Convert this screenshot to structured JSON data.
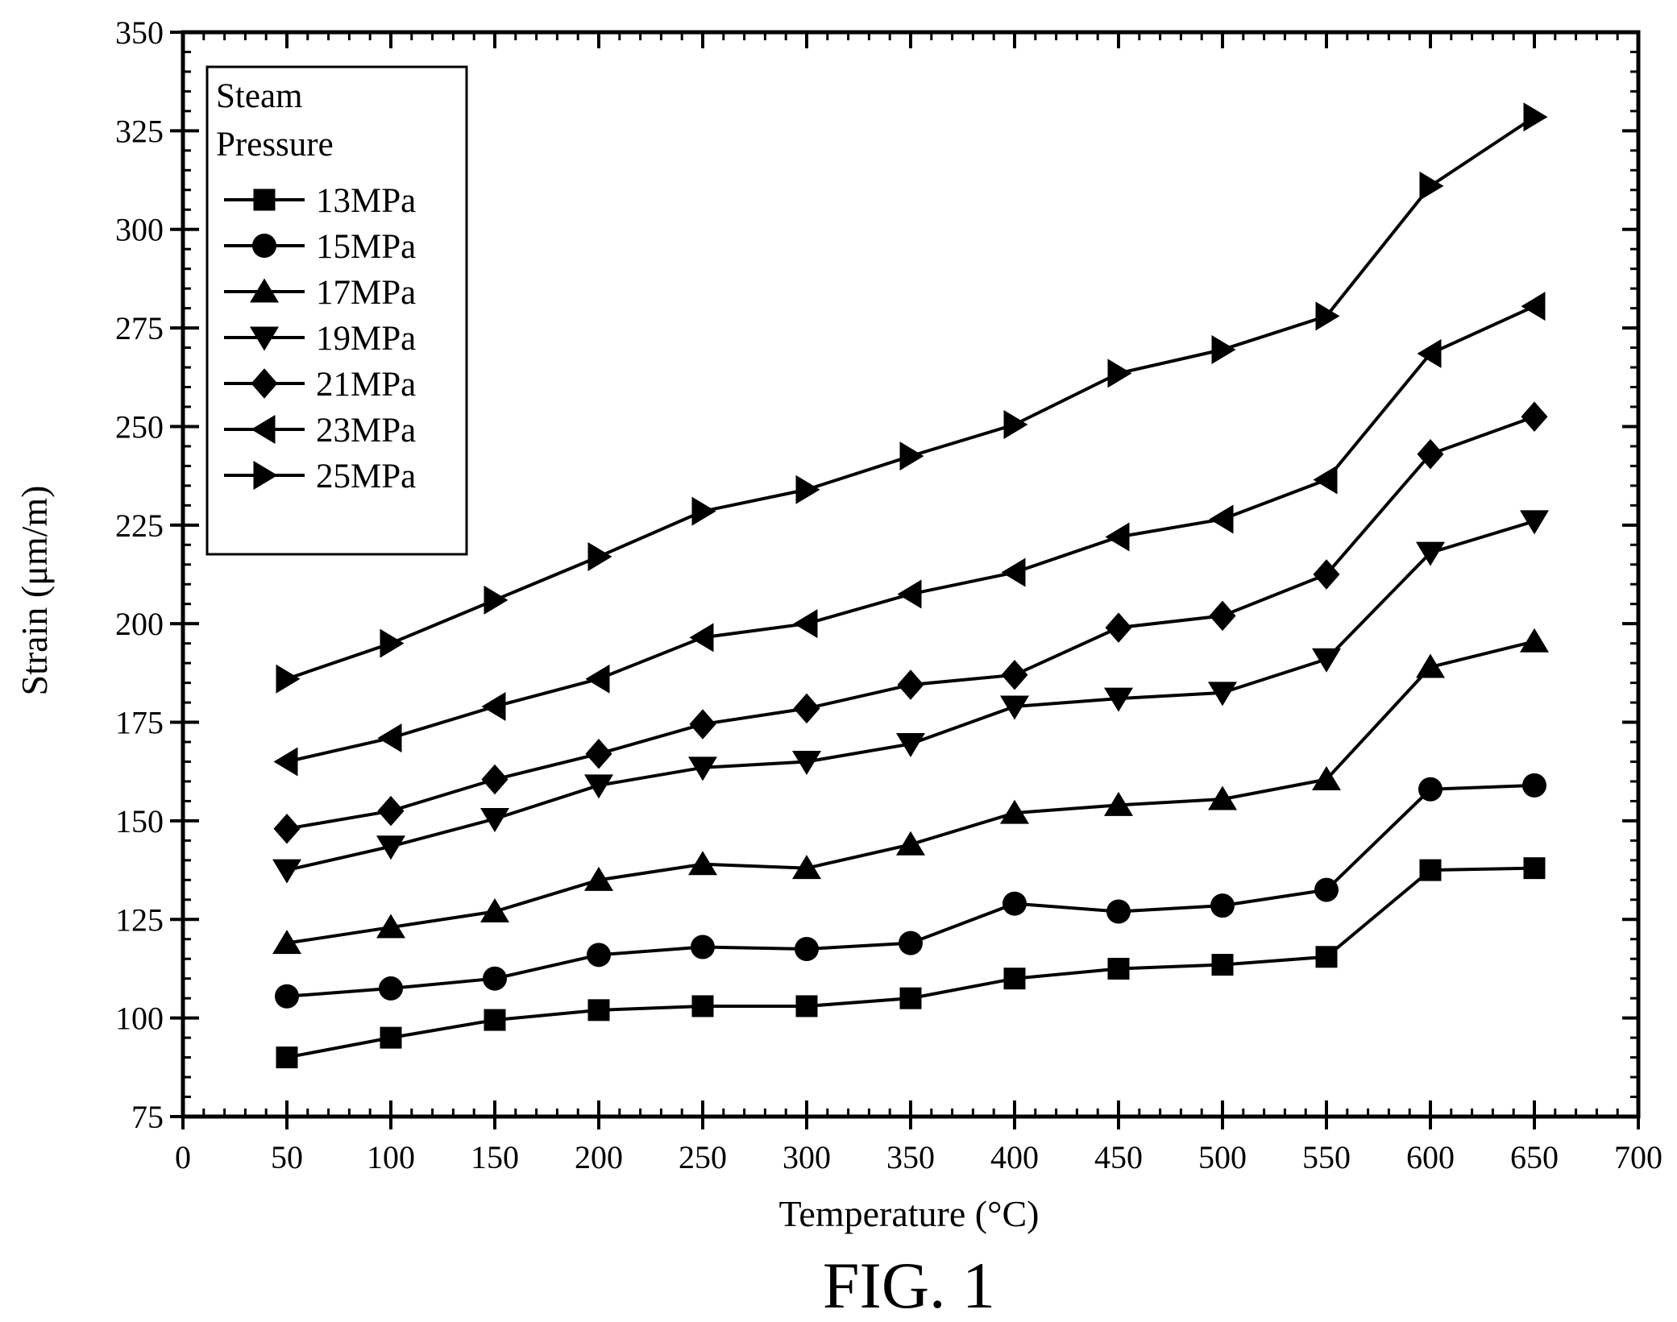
{
  "figure": {
    "caption": "FIG. 1"
  },
  "chart_data": {
    "type": "line",
    "xlabel": "Temperature (°C)",
    "ylabel": "Strain (μm/m)",
    "xlim": [
      0,
      700
    ],
    "ylim": [
      75,
      350
    ],
    "x_ticks": [
      0,
      50,
      100,
      150,
      200,
      250,
      300,
      350,
      400,
      450,
      500,
      550,
      600,
      650,
      700
    ],
    "y_ticks": [
      75,
      100,
      125,
      150,
      175,
      200,
      225,
      250,
      275,
      300,
      325,
      350
    ],
    "x": [
      50,
      100,
      150,
      200,
      250,
      300,
      350,
      400,
      450,
      500,
      550,
      600,
      650
    ],
    "grid": false,
    "legend": {
      "title": "Steam Pressure",
      "title_lines": [
        "Steam",
        "Pressure"
      ],
      "position": "top-left"
    },
    "series": [
      {
        "name": "13MPa",
        "marker": "square",
        "values": [
          90,
          95,
          99.5,
          102,
          103,
          103,
          105,
          110,
          112.5,
          113.5,
          115.5,
          137.5,
          138
        ]
      },
      {
        "name": "15MPa",
        "marker": "circle",
        "values": [
          105.5,
          107.5,
          110,
          116,
          118,
          117.5,
          119,
          129,
          127,
          128.5,
          132.5,
          158,
          159
        ]
      },
      {
        "name": "17MPa",
        "marker": "triangle-up",
        "values": [
          119,
          123,
          127,
          135,
          139,
          138,
          144,
          152,
          154,
          155.5,
          160.5,
          189,
          195.5
        ]
      },
      {
        "name": "19MPa",
        "marker": "triangle-down",
        "values": [
          137.5,
          143.5,
          150.5,
          159,
          163.5,
          165,
          169.5,
          179,
          181,
          182.5,
          191,
          218,
          226
        ]
      },
      {
        "name": "21MPa",
        "marker": "diamond",
        "values": [
          148,
          152.5,
          160.5,
          167,
          174.5,
          178.5,
          184.5,
          187,
          199,
          202,
          212.5,
          243,
          252.5
        ]
      },
      {
        "name": "23MPa",
        "marker": "triangle-left",
        "values": [
          165,
          171,
          179,
          186,
          196.5,
          200,
          207.5,
          213,
          222,
          226.5,
          236.5,
          268.5,
          280.5
        ]
      },
      {
        "name": "25MPa",
        "marker": "triangle-right",
        "values": [
          186,
          195,
          206,
          217,
          228.5,
          234,
          242.5,
          250.5,
          263.5,
          269.5,
          278,
          311,
          328.5
        ]
      }
    ]
  }
}
